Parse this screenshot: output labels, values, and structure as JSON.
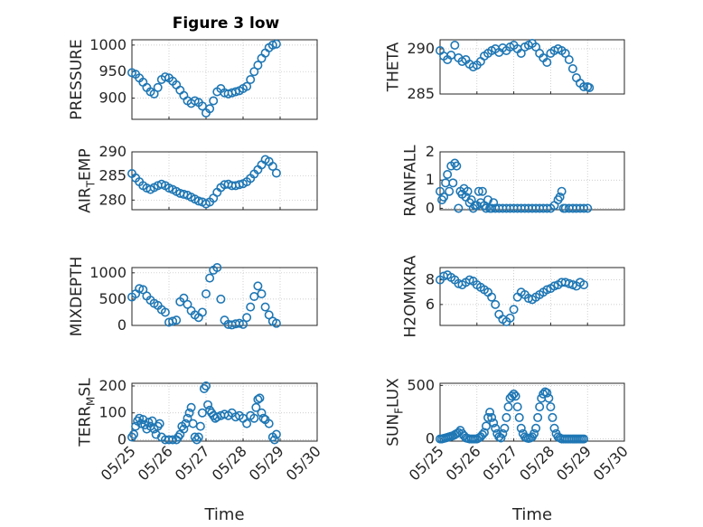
{
  "figure": {
    "title": "Figure 3 low",
    "colors": {
      "marker": "#1f77b4",
      "axes": "#262626",
      "grid": "#bdbdbd"
    }
  },
  "chart_data": [
    {
      "type": "scatter",
      "marker": "circle",
      "ylabel": "PRESSURE",
      "ylabel_sub": "",
      "ylim": [
        860,
        1010
      ],
      "yticks": [
        900,
        950,
        1000
      ],
      "yticklabels": [
        "900",
        "950",
        "1000"
      ],
      "xlim": [
        25,
        30
      ],
      "xticks": [
        25,
        26,
        27,
        28,
        29,
        30
      ],
      "grid": true,
      "show_xticklabels": false,
      "series": [
        {
          "x": [
            25.0,
            25.1,
            25.2,
            25.3,
            25.4,
            25.5,
            25.6,
            25.7,
            25.8,
            25.9,
            26.0,
            26.1,
            26.2,
            26.3,
            26.4,
            26.5,
            26.6,
            26.7,
            26.8,
            26.9,
            27.0,
            27.1,
            27.2,
            27.3,
            27.4,
            27.5,
            27.6,
            27.7,
            27.8,
            27.9,
            28.0,
            28.1,
            28.2,
            28.3,
            28.4,
            28.5,
            28.6,
            28.7,
            28.8,
            28.9
          ],
          "y": [
            948,
            945,
            938,
            930,
            920,
            912,
            908,
            920,
            935,
            940,
            938,
            932,
            925,
            915,
            905,
            895,
            890,
            895,
            892,
            885,
            872,
            880,
            895,
            912,
            918,
            910,
            908,
            910,
            912,
            914,
            918,
            922,
            935,
            950,
            962,
            975,
            985,
            995,
            1000,
            1002
          ]
        }
      ]
    },
    {
      "type": "scatter",
      "marker": "circle",
      "ylabel": "THETA",
      "ylabel_sub": "",
      "ylim": [
        285,
        291
      ],
      "yticks": [
        285,
        290
      ],
      "yticklabels": [
        "285",
        "290"
      ],
      "xlim": [
        25,
        30
      ],
      "xticks": [
        25,
        26,
        27,
        28,
        29,
        30
      ],
      "grid": true,
      "show_xticklabels": false,
      "series": [
        {
          "x": [
            25.0,
            25.1,
            25.2,
            25.3,
            25.4,
            25.5,
            25.6,
            25.7,
            25.8,
            25.9,
            26.0,
            26.1,
            26.2,
            26.3,
            26.4,
            26.5,
            26.6,
            26.7,
            26.8,
            26.9,
            27.0,
            27.1,
            27.2,
            27.3,
            27.4,
            27.5,
            27.6,
            27.7,
            27.8,
            27.9,
            28.0,
            28.1,
            28.2,
            28.3,
            28.4,
            28.5,
            28.6,
            28.7,
            28.8,
            28.9,
            29.0,
            29.05
          ],
          "y": [
            289.8,
            289.2,
            288.8,
            289.3,
            290.4,
            289.0,
            288.6,
            288.8,
            288.3,
            288.0,
            288.2,
            288.6,
            289.2,
            289.5,
            289.8,
            290.0,
            289.6,
            290.1,
            289.8,
            290.2,
            290.4,
            290.0,
            289.5,
            290.2,
            290.4,
            290.6,
            290.2,
            289.5,
            289.0,
            288.5,
            289.5,
            289.8,
            290.0,
            289.8,
            289.5,
            288.8,
            287.8,
            286.8,
            286.2,
            285.8,
            285.8,
            285.7
          ]
        }
      ]
    },
    {
      "type": "scatter",
      "marker": "circle",
      "ylabel": "AIR",
      "ylabel_sub": "T",
      "ylabel_rest": "EMP",
      "ylim": [
        278,
        290
      ],
      "yticks": [
        280,
        285,
        290
      ],
      "yticklabels": [
        "280",
        "285",
        "290"
      ],
      "xlim": [
        25,
        30
      ],
      "xticks": [
        25,
        26,
        27,
        28,
        29,
        30
      ],
      "grid": true,
      "show_xticklabels": false,
      "series": [
        {
          "x": [
            25.0,
            25.1,
            25.2,
            25.3,
            25.4,
            25.5,
            25.6,
            25.7,
            25.8,
            25.9,
            26.0,
            26.1,
            26.2,
            26.3,
            26.4,
            26.5,
            26.6,
            26.7,
            26.8,
            26.9,
            27.0,
            27.1,
            27.2,
            27.3,
            27.4,
            27.5,
            27.6,
            27.7,
            27.8,
            27.9,
            28.0,
            28.1,
            28.2,
            28.3,
            28.4,
            28.5,
            28.6,
            28.7,
            28.8,
            28.9
          ],
          "y": [
            285.5,
            284.6,
            283.8,
            283.0,
            282.5,
            282.2,
            282.6,
            283.0,
            283.3,
            283.0,
            282.5,
            282.2,
            281.8,
            281.4,
            281.2,
            281.0,
            280.6,
            280.2,
            279.8,
            279.6,
            279.2,
            279.6,
            280.4,
            281.6,
            282.6,
            283.2,
            283.3,
            283.0,
            283.0,
            283.2,
            283.4,
            283.8,
            284.5,
            285.4,
            286.3,
            287.3,
            288.4,
            288.0,
            287.0,
            285.6
          ]
        }
      ]
    },
    {
      "type": "scatter",
      "marker": "circle",
      "ylabel": "RAINFALL",
      "ylabel_sub": "",
      "ylim": [
        -0.05,
        2
      ],
      "yticks": [
        0,
        1,
        2
      ],
      "yticklabels": [
        "0",
        "1",
        "2"
      ],
      "xlim": [
        25,
        30
      ],
      "xticks": [
        25,
        26,
        27,
        28,
        29,
        30
      ],
      "grid": true,
      "show_xticklabels": false,
      "series": [
        {
          "x": [
            25.0,
            25.05,
            25.1,
            25.15,
            25.2,
            25.25,
            25.3,
            25.35,
            25.4,
            25.45,
            25.5,
            25.55,
            25.6,
            25.65,
            25.7,
            25.75,
            25.8,
            25.85,
            25.9,
            25.95,
            26.0,
            26.05,
            26.1,
            26.15,
            26.2,
            26.25,
            26.3,
            26.35,
            26.4,
            26.45,
            26.5,
            26.6,
            26.7,
            26.8,
            26.9,
            27.0,
            27.1,
            27.2,
            27.3,
            27.4,
            27.5,
            27.6,
            27.7,
            27.8,
            27.9,
            28.0,
            28.1,
            28.2,
            28.25,
            28.3,
            28.35,
            28.4,
            28.5,
            28.6,
            28.7,
            28.8,
            28.9,
            29.0
          ],
          "y": [
            0.6,
            0.3,
            0.4,
            0.9,
            1.2,
            0.6,
            1.5,
            0.9,
            1.6,
            1.5,
            0.0,
            0.6,
            0.5,
            0.7,
            0.4,
            0.6,
            0.2,
            0.3,
            0.0,
            0.1,
            0.1,
            0.6,
            0.2,
            0.6,
            0.1,
            0.0,
            0.3,
            0.0,
            0.0,
            0.2,
            0.0,
            0.0,
            0.0,
            0.0,
            0.0,
            0.0,
            0.0,
            0.0,
            0.0,
            0.0,
            0.0,
            0.0,
            0.0,
            0.0,
            0.0,
            0.0,
            0.1,
            0.3,
            0.4,
            0.6,
            0.0,
            0.0,
            0.0,
            0.0,
            0.0,
            0.0,
            0.0,
            0.0
          ]
        }
      ]
    },
    {
      "type": "scatter",
      "marker": "circle",
      "ylabel": "MIXDEPTH",
      "ylabel_sub": "",
      "ylim": [
        0,
        1100
      ],
      "yticks": [
        0,
        500,
        1000
      ],
      "yticklabels": [
        "0",
        "500",
        "1000"
      ],
      "xlim": [
        25,
        30
      ],
      "xticks": [
        25,
        26,
        27,
        28,
        29,
        30
      ],
      "grid": true,
      "show_xticklabels": false,
      "series": [
        {
          "x": [
            25.0,
            25.1,
            25.2,
            25.3,
            25.4,
            25.5,
            25.6,
            25.7,
            25.8,
            25.9,
            26.0,
            26.1,
            26.2,
            26.3,
            26.4,
            26.5,
            26.6,
            26.7,
            26.8,
            26.9,
            27.0,
            27.1,
            27.2,
            27.3,
            27.4,
            27.5,
            27.6,
            27.7,
            27.8,
            27.9,
            28.0,
            28.1,
            28.2,
            28.3,
            28.4,
            28.5,
            28.6,
            28.7,
            28.8,
            28.9
          ],
          "y": [
            540,
            600,
            700,
            680,
            560,
            480,
            420,
            380,
            300,
            250,
            60,
            80,
            100,
            450,
            520,
            400,
            280,
            200,
            150,
            250,
            600,
            900,
            1050,
            1100,
            500,
            100,
            20,
            10,
            30,
            40,
            20,
            150,
            350,
            550,
            750,
            600,
            350,
            200,
            80,
            40
          ]
        }
      ]
    },
    {
      "type": "scatter",
      "marker": "circle",
      "ylabel": "H2OMIXRA",
      "ylabel_sub": "",
      "ylim": [
        4.3,
        9
      ],
      "yticks": [
        6,
        8
      ],
      "yticklabels": [
        "6",
        "8"
      ],
      "xlim": [
        25,
        30
      ],
      "xticks": [
        25,
        26,
        27,
        28,
        29,
        30
      ],
      "grid": true,
      "show_xticklabels": false,
      "series": [
        {
          "x": [
            25.0,
            25.1,
            25.2,
            25.3,
            25.4,
            25.5,
            25.6,
            25.7,
            25.8,
            25.9,
            26.0,
            26.1,
            26.2,
            26.3,
            26.4,
            26.5,
            26.6,
            26.7,
            26.8,
            26.9,
            27.0,
            27.1,
            27.2,
            27.3,
            27.4,
            27.5,
            27.6,
            27.7,
            27.8,
            27.9,
            28.0,
            28.1,
            28.2,
            28.3,
            28.4,
            28.5,
            28.6,
            28.7,
            28.8,
            28.9
          ],
          "y": [
            8.0,
            8.3,
            8.4,
            8.2,
            8.0,
            7.7,
            7.6,
            7.8,
            8.0,
            7.9,
            7.6,
            7.4,
            7.2,
            7.0,
            6.6,
            6.0,
            5.2,
            4.8,
            4.6,
            4.9,
            5.6,
            6.6,
            7.0,
            6.8,
            6.5,
            6.4,
            6.6,
            6.8,
            7.0,
            7.2,
            7.3,
            7.5,
            7.6,
            7.8,
            7.8,
            7.7,
            7.6,
            7.5,
            7.8,
            7.6
          ]
        }
      ]
    },
    {
      "type": "scatter",
      "marker": "circle",
      "ylabel": "TERR",
      "ylabel_sub": "M",
      "ylabel_rest": "SL",
      "ylim": [
        -5,
        210
      ],
      "yticks": [
        0,
        100,
        200
      ],
      "yticklabels": [
        "0",
        "100",
        "200"
      ],
      "xlim": [
        25,
        30
      ],
      "xticks": [
        25,
        26,
        27,
        28,
        29,
        30
      ],
      "xticklabels": [
        "05/25",
        "05/26",
        "05/27",
        "05/28",
        "05/29",
        "05/30"
      ],
      "xlabel": "Time",
      "grid": true,
      "show_xticklabels": true,
      "series": [
        {
          "x": [
            25.0,
            25.05,
            25.1,
            25.15,
            25.2,
            25.25,
            25.3,
            25.35,
            25.4,
            25.45,
            25.5,
            25.55,
            25.6,
            25.65,
            25.7,
            25.75,
            25.8,
            25.9,
            26.0,
            26.1,
            26.2,
            26.25,
            26.3,
            26.35,
            26.4,
            26.45,
            26.5,
            26.55,
            26.6,
            26.65,
            26.7,
            26.75,
            26.8,
            26.85,
            26.9,
            26.95,
            27.0,
            27.05,
            27.1,
            27.15,
            27.2,
            27.25,
            27.3,
            27.4,
            27.5,
            27.6,
            27.7,
            27.8,
            27.9,
            28.0,
            28.1,
            28.2,
            28.3,
            28.35,
            28.4,
            28.45,
            28.5,
            28.55,
            28.6,
            28.7,
            28.8,
            28.85,
            28.9
          ],
          "y": [
            10,
            20,
            50,
            70,
            80,
            60,
            75,
            55,
            40,
            65,
            50,
            70,
            40,
            20,
            50,
            60,
            10,
            0,
            0,
            0,
            0,
            10,
            20,
            50,
            40,
            60,
            80,
            100,
            120,
            60,
            10,
            0,
            10,
            50,
            100,
            190,
            200,
            130,
            110,
            100,
            90,
            80,
            85,
            90,
            95,
            90,
            100,
            85,
            90,
            80,
            60,
            90,
            80,
            120,
            150,
            155,
            100,
            80,
            75,
            60,
            10,
            0,
            20
          ]
        }
      ]
    },
    {
      "type": "scatter",
      "marker": "circle",
      "ylabel": "SUN",
      "ylabel_sub": "F",
      "ylabel_rest": "LUX",
      "ylim": [
        -20,
        520
      ],
      "yticks": [
        0,
        500
      ],
      "yticklabels": [
        "0",
        "500"
      ],
      "xlim": [
        25,
        30
      ],
      "xticks": [
        25,
        26,
        27,
        28,
        29,
        30
      ],
      "xticklabels": [
        "05/25",
        "05/26",
        "05/27",
        "05/28",
        "05/29",
        "05/30"
      ],
      "xlabel": "Time",
      "grid": true,
      "show_xticklabels": true,
      "series": [
        {
          "x": [
            25.0,
            25.05,
            25.1,
            25.15,
            25.2,
            25.25,
            25.3,
            25.35,
            25.4,
            25.45,
            25.5,
            25.55,
            25.6,
            25.65,
            25.7,
            25.75,
            25.8,
            25.85,
            25.9,
            25.95,
            26.0,
            26.05,
            26.1,
            26.15,
            26.2,
            26.25,
            26.3,
            26.35,
            26.4,
            26.45,
            26.5,
            26.55,
            26.6,
            26.65,
            26.7,
            26.75,
            26.8,
            26.85,
            26.9,
            26.95,
            27.0,
            27.05,
            27.1,
            27.15,
            27.2,
            27.25,
            27.3,
            27.35,
            27.4,
            27.45,
            27.5,
            27.55,
            27.6,
            27.65,
            27.7,
            27.75,
            27.8,
            27.85,
            27.9,
            27.95,
            28.0,
            28.05,
            28.1,
            28.15,
            28.2,
            28.25,
            28.3,
            28.35,
            28.4,
            28.45,
            28.5,
            28.55,
            28.6,
            28.65,
            28.7,
            28.75,
            28.8,
            28.85,
            28.9
          ],
          "y": [
            0,
            0,
            5,
            10,
            15,
            20,
            25,
            30,
            40,
            50,
            60,
            80,
            50,
            30,
            10,
            5,
            0,
            0,
            0,
            0,
            0,
            10,
            20,
            40,
            60,
            120,
            200,
            250,
            200,
            150,
            100,
            50,
            20,
            10,
            50,
            100,
            200,
            300,
            380,
            400,
            420,
            400,
            300,
            200,
            100,
            50,
            20,
            10,
            5,
            10,
            20,
            50,
            100,
            200,
            300,
            380,
            420,
            440,
            430,
            380,
            300,
            200,
            100,
            50,
            20,
            10,
            0,
            0,
            0,
            0,
            0,
            0,
            0,
            0,
            0,
            0,
            0,
            0,
            0
          ]
        }
      ]
    }
  ]
}
